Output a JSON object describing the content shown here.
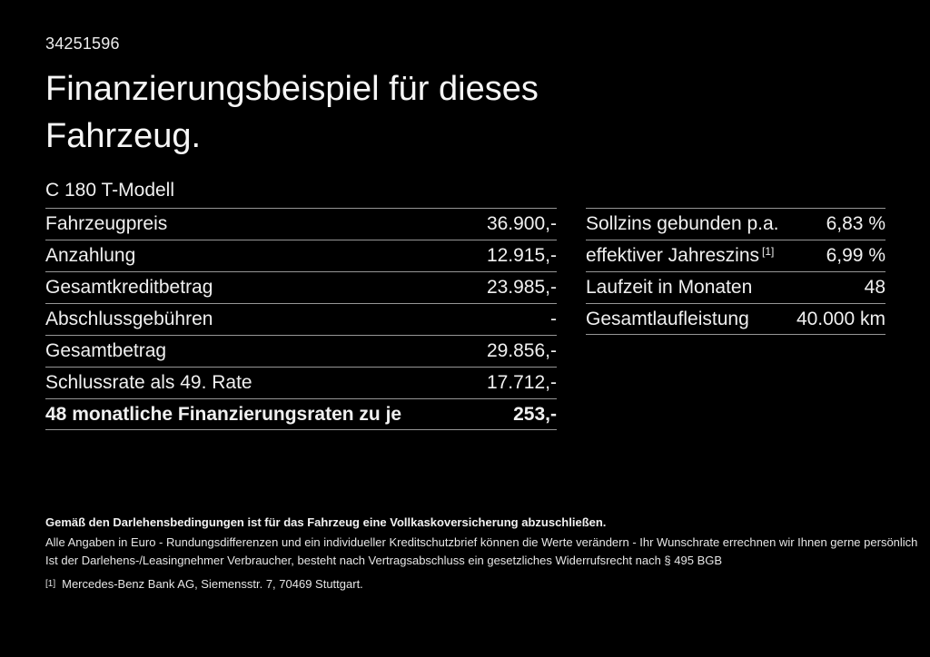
{
  "header": {
    "id_number": "34251596",
    "title_line1": "Finanzierungsbeispiel für dieses",
    "title_line2": "Fahrzeug.",
    "model": "C 180 T-Modell"
  },
  "finance_table": {
    "rows": [
      {
        "label": "Fahrzeugpreis",
        "value": "36.900,-"
      },
      {
        "label": "Anzahlung",
        "value": "12.915,-"
      },
      {
        "label": "Gesamtkreditbetrag",
        "value": "23.985,-"
      },
      {
        "label": "Abschlussgebühren",
        "value": "-"
      },
      {
        "label": "Gesamtbetrag",
        "value": "29.856,-"
      },
      {
        "label": "Schlussrate als 49. Rate",
        "value": "17.712,-"
      },
      {
        "label": "48 monatliche Finanzierungsraten zu je",
        "value": "253,-"
      }
    ]
  },
  "conditions_table": {
    "rows": [
      {
        "label": "Sollzins gebunden p.a.",
        "value": "6,83 %"
      },
      {
        "label": "effektiver Jahreszins",
        "sup": "[1]",
        "value": "6,99 %"
      },
      {
        "label": "Laufzeit in Monaten",
        "value": "48"
      },
      {
        "label": "Gesamtlaufleistung",
        "value": "40.000 km"
      }
    ]
  },
  "footer": {
    "insurance_note": "Gemäß den Darlehensbedingungen ist für das Fahrzeug eine Vollkaskoversicherung abzuschließen.",
    "disclaimer": "Alle Angaben in Euro - Rundungsdifferenzen und ein individueller Kreditschutzbrief können die Werte verändern - Ihr Wunschrate errechnen wir Ihnen gerne persönlich",
    "withdrawal_note": "Ist der Darlehens-/Leasingnehmer Verbraucher, besteht nach Vertragsabschluss ein gesetzliches Widerrufsrecht nach § 495 BGB",
    "footnote_marker": "[1]",
    "footnote_text": "Mercedes-Benz Bank AG, Siemensstr. 7, 70469 Stuttgart."
  },
  "colors": {
    "background": "#000000",
    "text": "#f0f0f0",
    "divider": "#969696"
  }
}
